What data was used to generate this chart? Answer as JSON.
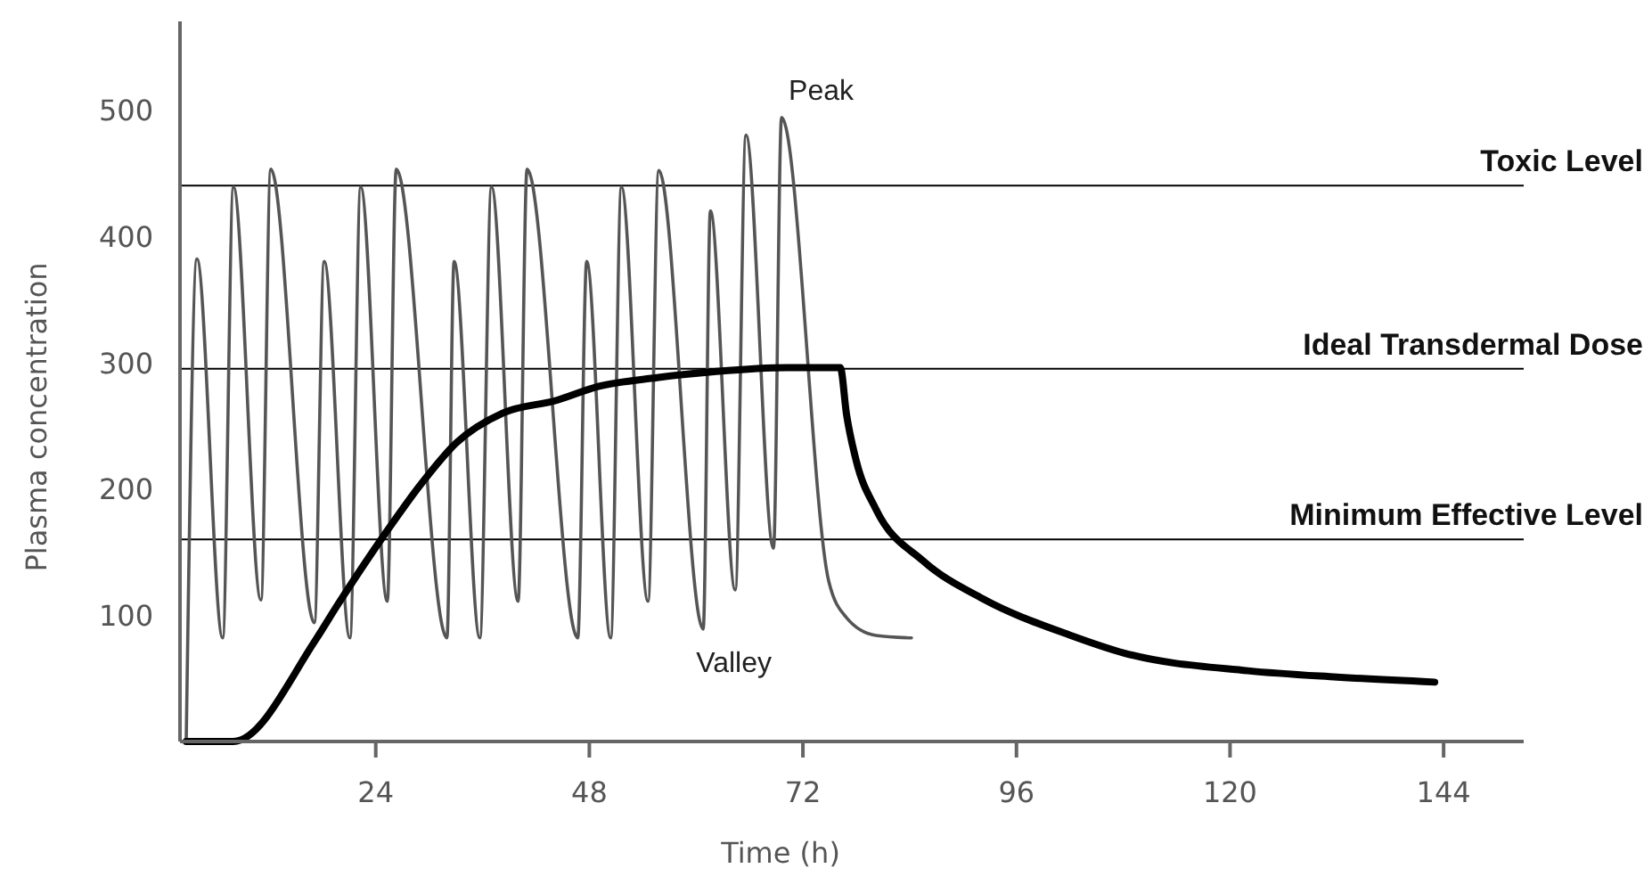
{
  "chart_data": {
    "type": "line",
    "xlabel": "Time (h)",
    "ylabel": "Plasma concentration",
    "xlim": [
      2,
      153
    ],
    "xticks": [
      24,
      48,
      72,
      96,
      120,
      144
    ],
    "ylim": [
      0,
      570
    ],
    "yticks": [
      100,
      200,
      300,
      400,
      500
    ],
    "grid": false,
    "marker": "none",
    "line_style": "solid",
    "series": [
      {
        "color": "#555555",
        "x": [
          2.7,
          3.9,
          6.8,
          8.0,
          11.1,
          12.2,
          17.1,
          18.2,
          21.1,
          22.3,
          25.3,
          26.3,
          32.0,
          32.8,
          35.7,
          37.0,
          40.0,
          41.0,
          46.7,
          47.7,
          50.4,
          51.6,
          54.6,
          55.8,
          60.8,
          61.6,
          64.4,
          65.6,
          68.7,
          69.6,
          74.9,
          76.9,
          80.2,
          84.2
        ],
        "values": [
          0,
          382,
          82,
          439,
          112,
          453,
          94,
          380,
          82,
          439,
          111,
          453,
          82,
          380,
          82,
          439,
          111,
          453,
          82,
          380,
          82,
          439,
          111,
          452,
          89,
          420,
          120,
          480,
          153,
          494,
          127,
          98,
          84,
          82
        ]
      },
      {
        "color": "#000000",
        "x": [
          2.7,
          8.0,
          17.2,
          19.7,
          25.1,
          29,
          33,
          38.3,
          44.3,
          49,
          55.6,
          62.3,
          70.2,
          76.2,
          76.9,
          78,
          80.2,
          85.5,
          92.2,
          102.1,
          108.1,
          122,
          132,
          143
        ],
        "values": [
          0,
          0,
          80,
          108,
          165,
          203,
          236,
          260,
          270,
          281,
          288,
          293,
          296,
          296,
          259,
          222,
          184,
          143,
          113,
          84,
          70,
          56,
          51,
          47
        ]
      }
    ],
    "ref_lines": [
      {
        "axis": "y",
        "value": 440,
        "label": "Toxic Level"
      },
      {
        "axis": "y",
        "value": 295,
        "label": "Ideal Transdermal Dose"
      },
      {
        "axis": "y",
        "value": 160,
        "label": "Minimum Effective Level"
      }
    ],
    "annotations": [
      {
        "text": "Peak",
        "x": 69.6,
        "y": 494
      },
      {
        "text": "Valley",
        "x": 60.8,
        "y": 89
      }
    ]
  }
}
